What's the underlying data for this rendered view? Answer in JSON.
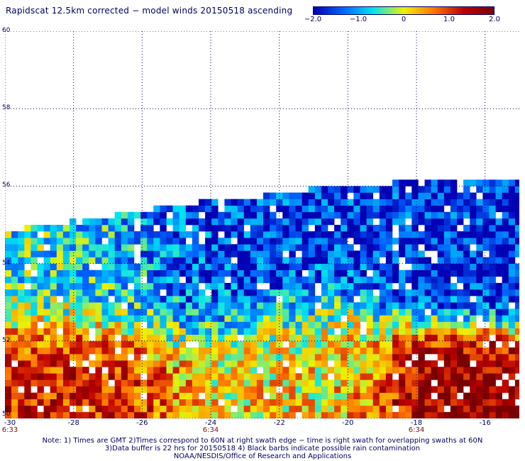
{
  "title": "Rapidscat 12.5km corrected − model winds 20150518 ascending",
  "colorbar": {
    "labels": [
      "−2.0",
      "−1.0",
      "0",
      "1.0",
      "2.0"
    ],
    "values": [
      -2.0,
      -1.0,
      0,
      1.0,
      2.0
    ],
    "colors": [
      "#0000b4",
      "#0066ff",
      "#00e6f0",
      "#f0f000",
      "#ff7800",
      "#be0000",
      "#780000"
    ]
  },
  "map": {
    "lat_range": [
      50,
      60
    ],
    "lon_range": [
      -30,
      -15
    ],
    "y_tick_labels": [
      "50",
      "52",
      "54",
      "56",
      "58",
      "60"
    ],
    "y_ticks": [
      50,
      52,
      54,
      56,
      58,
      60
    ],
    "x_tick_labels": [
      "-30",
      "-28",
      "-26",
      "-24",
      "-22",
      "-20",
      "-18",
      "-16"
    ],
    "x_ticks": [
      -30,
      -28,
      -26,
      -24,
      -22,
      -20,
      -18,
      -16
    ],
    "time_labels": [
      {
        "lon": -30,
        "text": "6:33"
      },
      {
        "lon": -24,
        "text": "6:34"
      },
      {
        "lon": -18,
        "text": "6:34"
      }
    ],
    "grid": true,
    "swath": {
      "top_edge": [
        {
          "lon": -30,
          "lat": 54.9
        },
        {
          "lon": -28.5,
          "lat": 55.1
        },
        {
          "lon": -27,
          "lat": 55.3
        },
        {
          "lon": -25.5,
          "lat": 55.5
        },
        {
          "lon": -24,
          "lat": 55.7
        },
        {
          "lon": -22.5,
          "lat": 55.8
        },
        {
          "lon": -21,
          "lat": 56.0
        },
        {
          "lon": -19.5,
          "lat": 56.1
        },
        {
          "lon": -18,
          "lat": 56.2
        },
        {
          "lon": -15,
          "lat": 56.2
        }
      ],
      "regions": [
        {
          "name": "south-west warm",
          "lon": [
            -30,
            -25.5
          ],
          "lat": [
            50,
            52.2
          ],
          "value": 1.2
        },
        {
          "name": "north-west cool",
          "lon": [
            -30,
            -25
          ],
          "lat": [
            52.5,
            55
          ],
          "value": -0.6
        },
        {
          "name": "central blue",
          "lon": [
            -26.5,
            -21
          ],
          "lat": [
            52.5,
            55.5
          ],
          "value": -1.6
        },
        {
          "name": "central south mixed",
          "lon": [
            -25,
            -19
          ],
          "lat": [
            50,
            52.5
          ],
          "value": 0.2
        },
        {
          "name": "north-east blue",
          "lon": [
            -19,
            -15
          ],
          "lat": [
            53,
            56.2
          ],
          "value": -1.7
        },
        {
          "name": "south-east red",
          "lon": [
            -18.5,
            -15.5
          ],
          "lat": [
            50,
            51.8
          ],
          "value": 1.8
        }
      ]
    }
  },
  "notes": [
    "Note: 1) Times are GMT 2)Times correspond to 60N at right swath edge − time is right swath for overlapping swaths at 60N",
    "3)Data buffer is 22 hrs for 20150518 4) Black barbs indicate possible rain contamination",
    "NOAA/NESDIS/Office of Research and Applications"
  ]
}
